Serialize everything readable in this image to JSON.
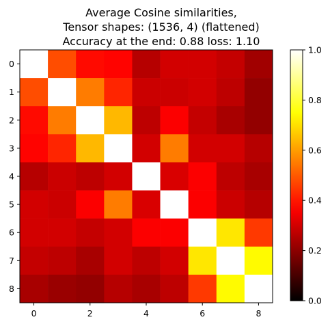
{
  "chart_data": {
    "type": "heatmap",
    "title": [
      "Average Cosine similarities,",
      "Tensor shapes: (1536, 4) (flattened)",
      "Accuracy at the end: 0.88 loss: 1.10"
    ],
    "xlabel": "",
    "ylabel": "",
    "x_ticks": [
      0,
      2,
      4,
      6,
      8
    ],
    "y_ticks": [
      0,
      1,
      2,
      3,
      4,
      5,
      6,
      7,
      8
    ],
    "colorbar": {
      "colormap": "hot",
      "range": [
        0.0,
        1.0
      ],
      "ticks": [
        0.0,
        0.2,
        0.4,
        0.6,
        0.8,
        1.0
      ]
    },
    "matrix": [
      [
        1.0,
        0.48,
        0.38,
        0.37,
        0.26,
        0.3,
        0.3,
        0.28,
        0.23
      ],
      [
        0.48,
        1.0,
        0.55,
        0.42,
        0.29,
        0.29,
        0.3,
        0.27,
        0.21
      ],
      [
        0.38,
        0.55,
        1.0,
        0.64,
        0.27,
        0.36,
        0.28,
        0.24,
        0.21
      ],
      [
        0.37,
        0.42,
        0.64,
        1.0,
        0.3,
        0.55,
        0.3,
        0.3,
        0.26
      ],
      [
        0.26,
        0.29,
        0.27,
        0.3,
        1.0,
        0.31,
        0.36,
        0.27,
        0.24
      ],
      [
        0.3,
        0.29,
        0.36,
        0.55,
        0.31,
        1.0,
        0.36,
        0.29,
        0.26
      ],
      [
        0.3,
        0.3,
        0.28,
        0.3,
        0.36,
        0.36,
        1.0,
        0.71,
        0.45
      ],
      [
        0.28,
        0.27,
        0.24,
        0.3,
        0.27,
        0.3,
        0.71,
        1.0,
        0.74
      ],
      [
        0.24,
        0.22,
        0.21,
        0.26,
        0.24,
        0.27,
        0.45,
        0.74,
        1.0
      ]
    ]
  }
}
